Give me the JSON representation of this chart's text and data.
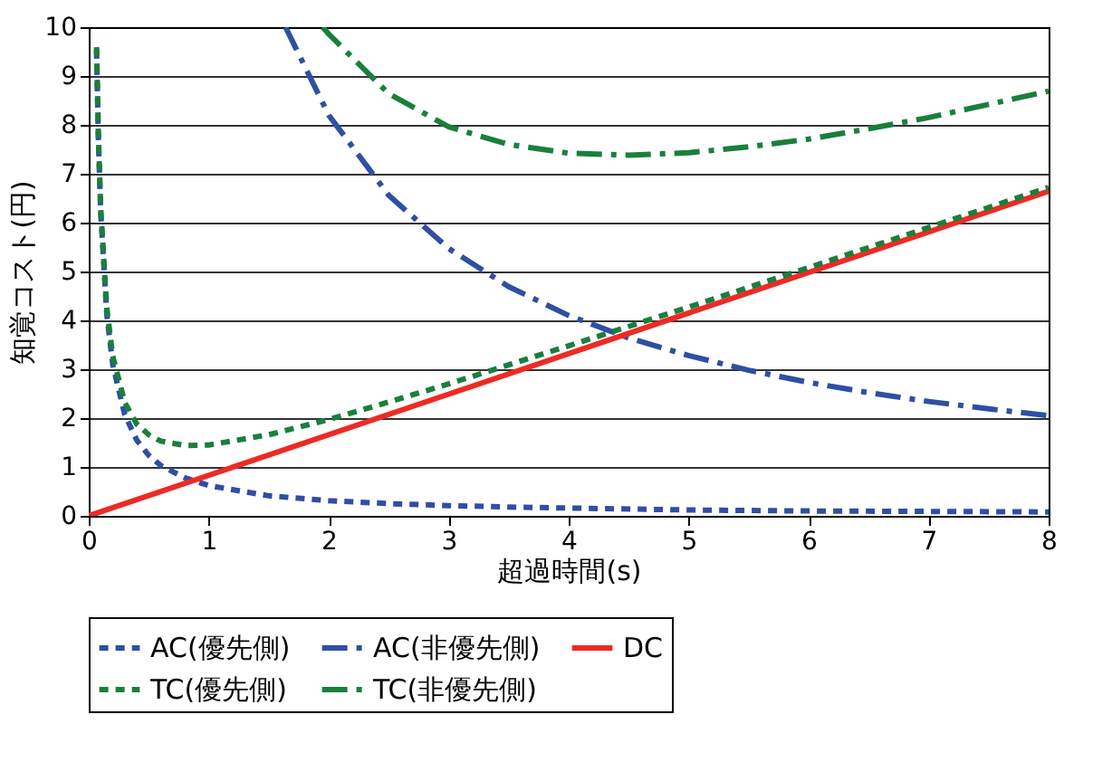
{
  "chart_data": {
    "type": "line",
    "xlabel": "超過時間(s)",
    "ylabel": "知覚コスト(円)",
    "xlim": [
      0,
      8
    ],
    "ylim": [
      0,
      10
    ],
    "xticks": [
      0,
      1,
      2,
      3,
      4,
      5,
      6,
      7,
      8
    ],
    "yticks": [
      0,
      1,
      2,
      3,
      4,
      5,
      6,
      7,
      8,
      9,
      10
    ],
    "grid": "y",
    "legend": "bottom",
    "marker": "none",
    "series": [
      {
        "name": "AC(優先側)",
        "color": "#2e4fa3",
        "line_style": "dotted",
        "x": [
          0.065,
          0.08,
          0.1,
          0.15,
          0.2,
          0.3,
          0.4,
          0.5,
          0.6,
          0.8,
          1,
          1.5,
          2,
          2.5,
          3,
          3.5,
          4,
          5,
          6,
          7,
          8
        ],
        "values": [
          9.54,
          7.75,
          6.2,
          4.13,
          3.1,
          2.07,
          1.55,
          1.24,
          1.03,
          0.78,
          0.62,
          0.41,
          0.31,
          0.25,
          0.21,
          0.18,
          0.16,
          0.12,
          0.1,
          0.09,
          0.08
        ]
      },
      {
        "name": "AC(非優先側)",
        "color": "#2e4fa3",
        "line_style": "dashed",
        "x": [
          1.64,
          2,
          2.5,
          3,
          3.5,
          4,
          4.5,
          5,
          5.5,
          6,
          6.5,
          7,
          7.5,
          8
        ],
        "values": [
          10,
          8.2,
          6.56,
          5.47,
          4.69,
          4.1,
          3.64,
          3.28,
          2.98,
          2.73,
          2.52,
          2.34,
          2.19,
          2.05
        ]
      },
      {
        "name": "DC",
        "color": "#ee2a24",
        "line_style": "solid",
        "x": [
          0,
          8
        ],
        "values": [
          0,
          6.64
        ]
      },
      {
        "name": "TC(優先側)",
        "color": "#1a7f3c",
        "line_style": "dotted",
        "x": [
          0.065,
          0.08,
          0.1,
          0.15,
          0.2,
          0.3,
          0.4,
          0.5,
          0.6,
          0.8,
          1,
          1.5,
          2,
          2.5,
          3,
          3.5,
          4,
          5,
          6,
          7,
          8
        ],
        "values": [
          9.59,
          7.82,
          6.28,
          4.26,
          3.27,
          2.32,
          1.88,
          1.66,
          1.53,
          1.44,
          1.45,
          1.66,
          1.97,
          2.33,
          2.7,
          3.09,
          3.48,
          4.27,
          5.08,
          5.9,
          6.72
        ]
      },
      {
        "name": "TC(非優先側)",
        "color": "#1a7f3c",
        "line_style": "dashed",
        "x": [
          1.95,
          2,
          2.5,
          3,
          3.5,
          4,
          4.5,
          5,
          5.5,
          6,
          6.5,
          7,
          7.5,
          8
        ],
        "values": [
          10,
          9.86,
          8.64,
          7.96,
          7.6,
          7.42,
          7.38,
          7.43,
          7.55,
          7.71,
          7.92,
          8.15,
          8.42,
          8.69
        ]
      }
    ]
  }
}
